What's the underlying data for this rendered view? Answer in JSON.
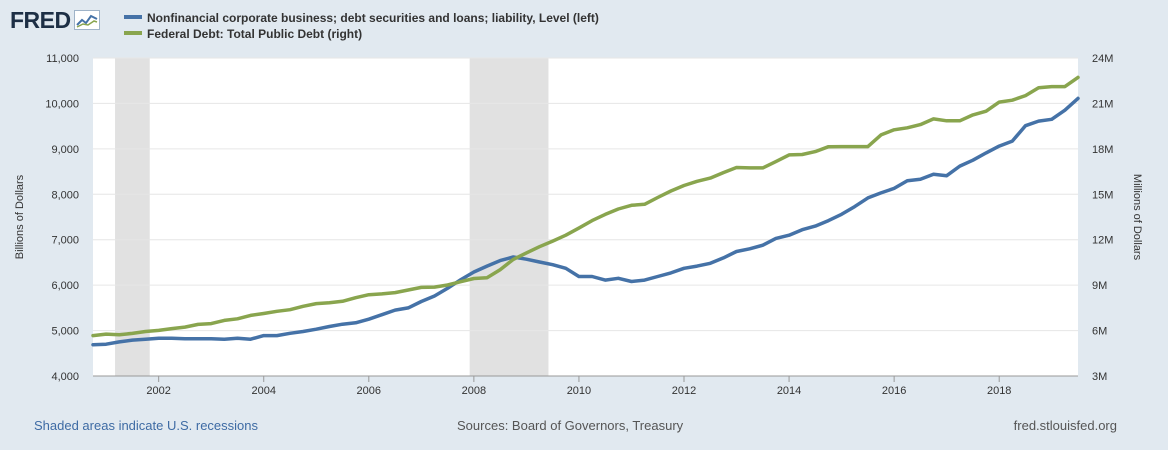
{
  "brand": {
    "logo_text": "FRED"
  },
  "footer": {
    "recession_note": "Shaded areas indicate U.S. recessions",
    "sources": "Sources: Board of Governors, Treasury",
    "site": "fred.stlouisfed.org"
  },
  "colors": {
    "background": "#e1e9f0",
    "series_left": "#4572a7",
    "series_right": "#89a54e",
    "recession": "#e1e1e1"
  },
  "chart_data": {
    "type": "line",
    "title": "",
    "xlabel": "",
    "x_ticks": [
      "2002",
      "2004",
      "2006",
      "2008",
      "2010",
      "2012",
      "2014",
      "2016",
      "2018"
    ],
    "x_tick_values": [
      2002,
      2004,
      2006,
      2008,
      2010,
      2012,
      2014,
      2016,
      2018
    ],
    "xlim": [
      2000.75,
      2019.5
    ],
    "y_left": {
      "label": "Billions of Dollars",
      "ylim": [
        4000,
        11000
      ],
      "ticks": [
        "4,000",
        "5,000",
        "6,000",
        "7,000",
        "8,000",
        "9,000",
        "10,000",
        "11,000"
      ]
    },
    "y_right": {
      "label": "Millions of Dollars",
      "ylim": [
        3,
        24
      ],
      "ticks": [
        "3M",
        "6M",
        "9M",
        "12M",
        "15M",
        "18M",
        "21M",
        "24M"
      ]
    },
    "recessions": [
      [
        2001.17,
        2001.83
      ],
      [
        2007.92,
        2009.42
      ]
    ],
    "grid": true,
    "legend_position": "top-left",
    "series": [
      {
        "name": "Nonfinancial corporate business; debt securities and loans; liability, Level (left)",
        "axis": "left",
        "x": [
          2000.75,
          2001.0,
          2001.25,
          2001.5,
          2001.75,
          2002.0,
          2002.25,
          2002.5,
          2002.75,
          2003.0,
          2003.25,
          2003.5,
          2003.75,
          2004.0,
          2004.25,
          2004.5,
          2004.75,
          2005.0,
          2005.25,
          2005.5,
          2005.75,
          2006.0,
          2006.25,
          2006.5,
          2006.75,
          2007.0,
          2007.25,
          2007.5,
          2007.75,
          2008.0,
          2008.25,
          2008.5,
          2008.75,
          2009.0,
          2009.25,
          2009.5,
          2009.75,
          2010.0,
          2010.25,
          2010.5,
          2010.75,
          2011.0,
          2011.25,
          2011.5,
          2011.75,
          2012.0,
          2012.25,
          2012.5,
          2012.75,
          2013.0,
          2013.25,
          2013.5,
          2013.75,
          2014.0,
          2014.25,
          2014.5,
          2014.75,
          2015.0,
          2015.25,
          2015.5,
          2015.75,
          2016.0,
          2016.25,
          2016.5,
          2016.75,
          2017.0,
          2017.25,
          2017.5,
          2017.75,
          2018.0,
          2018.25,
          2018.5,
          2018.75,
          2019.0,
          2019.25,
          2019.5
        ],
        "values": [
          4690,
          4700,
          4750,
          4790,
          4810,
          4830,
          4830,
          4820,
          4820,
          4820,
          4810,
          4830,
          4810,
          4890,
          4890,
          4940,
          4980,
          5030,
          5090,
          5140,
          5170,
          5250,
          5350,
          5450,
          5500,
          5640,
          5760,
          5930,
          6120,
          6290,
          6420,
          6540,
          6620,
          6570,
          6510,
          6450,
          6370,
          6190,
          6190,
          6110,
          6150,
          6080,
          6110,
          6190,
          6270,
          6370,
          6420,
          6480,
          6600,
          6740,
          6800,
          6880,
          7030,
          7100,
          7220,
          7300,
          7420,
          7560,
          7730,
          7920,
          8030,
          8130,
          8300,
          8330,
          8440,
          8410,
          8620,
          8750,
          8910,
          9060,
          9170,
          9510,
          9610,
          9650,
          9850,
          10110
        ]
      },
      {
        "name": "Federal Debt: Total Public Debt (right)",
        "axis": "right",
        "x": [
          2000.75,
          2001.0,
          2001.25,
          2001.5,
          2001.75,
          2002.0,
          2002.25,
          2002.5,
          2002.75,
          2003.0,
          2003.25,
          2003.5,
          2003.75,
          2004.0,
          2004.25,
          2004.5,
          2004.75,
          2005.0,
          2005.25,
          2005.5,
          2005.75,
          2006.0,
          2006.25,
          2006.5,
          2006.75,
          2007.0,
          2007.25,
          2007.5,
          2007.75,
          2008.0,
          2008.25,
          2008.5,
          2008.75,
          2009.0,
          2009.25,
          2009.5,
          2009.75,
          2010.0,
          2010.25,
          2010.5,
          2010.75,
          2011.0,
          2011.25,
          2011.5,
          2011.75,
          2012.0,
          2012.25,
          2012.5,
          2012.75,
          2013.0,
          2013.25,
          2013.5,
          2013.75,
          2014.0,
          2014.25,
          2014.5,
          2014.75,
          2015.0,
          2015.25,
          2015.5,
          2015.75,
          2016.0,
          2016.25,
          2016.5,
          2016.75,
          2017.0,
          2017.25,
          2017.5,
          2017.75,
          2018.0,
          2018.25,
          2018.5,
          2018.75,
          2019.0,
          2019.25,
          2019.5
        ],
        "values": [
          5.67,
          5.77,
          5.73,
          5.81,
          5.94,
          6.01,
          6.13,
          6.23,
          6.41,
          6.46,
          6.67,
          6.78,
          7.0,
          7.13,
          7.27,
          7.38,
          7.6,
          7.78,
          7.84,
          7.93,
          8.17,
          8.37,
          8.42,
          8.51,
          8.68,
          8.85,
          8.87,
          9.01,
          9.23,
          9.44,
          9.49,
          10.02,
          10.7,
          11.13,
          11.54,
          11.91,
          12.3,
          12.77,
          13.26,
          13.67,
          14.03,
          14.27,
          14.34,
          14.79,
          15.22,
          15.58,
          15.86,
          16.07,
          16.43,
          16.77,
          16.74,
          16.74,
          17.16,
          17.6,
          17.63,
          17.82,
          18.14,
          18.15,
          18.15,
          18.15,
          18.92,
          19.26,
          19.39,
          19.6,
          19.98,
          19.85,
          19.85,
          20.24,
          20.49,
          21.09,
          21.21,
          21.52,
          22.03,
          22.11,
          22.11,
          22.72
        ]
      }
    ]
  }
}
